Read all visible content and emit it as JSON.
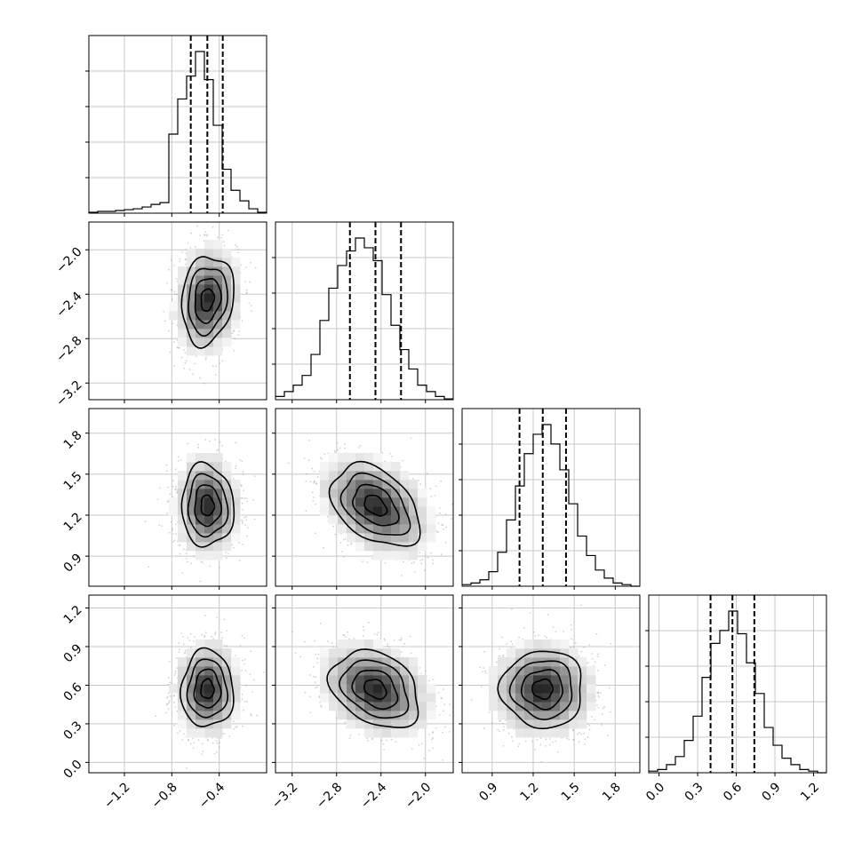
{
  "chart_data": {
    "type": "corner",
    "title": "",
    "grid": true,
    "parameters": [
      {
        "index": 0,
        "center": -0.5,
        "std": 0.11,
        "quantiles": [
          -0.64,
          -0.5,
          -0.37
        ],
        "range": [
          -1.5,
          0.0
        ],
        "ticks": [
          -1.2,
          -0.8,
          -0.4
        ],
        "tick_labels": [
          "−1.2",
          "−0.8",
          "−0.4"
        ]
      },
      {
        "index": 1,
        "center": -2.45,
        "std": 0.2,
        "quantiles": [
          -2.68,
          -2.45,
          -2.22
        ],
        "range": [
          -3.35,
          -1.75
        ],
        "ticks": [
          -3.2,
          -2.8,
          -2.4,
          -2.0
        ],
        "tick_labels": [
          "−3.2",
          "−2.8",
          "−2.4",
          "−2.0"
        ]
      },
      {
        "index": 2,
        "center": 1.27,
        "std": 0.15,
        "quantiles": [
          1.1,
          1.27,
          1.44
        ],
        "range": [
          0.68,
          1.98
        ],
        "ticks": [
          0.9,
          1.2,
          1.5,
          1.8
        ],
        "tick_labels": [
          "0.9",
          "1.2",
          "1.5",
          "1.8"
        ]
      },
      {
        "index": 3,
        "center": 0.57,
        "std": 0.15,
        "quantiles": [
          0.4,
          0.57,
          0.74
        ],
        "range": [
          -0.08,
          1.3
        ],
        "ticks": [
          0.0,
          0.3,
          0.6,
          0.9,
          1.2
        ],
        "tick_labels": [
          "0.0",
          "0.3",
          "0.6",
          "0.9",
          "1.2"
        ]
      }
    ],
    "correlations": [
      {
        "row": 1,
        "col": 0,
        "rho": 0.15
      },
      {
        "row": 2,
        "col": 0,
        "rho": -0.05
      },
      {
        "row": 2,
        "col": 1,
        "rho": -0.4
      },
      {
        "row": 3,
        "col": 0,
        "rho": 0.0
      },
      {
        "row": 3,
        "col": 1,
        "rho": -0.3
      },
      {
        "row": 3,
        "col": 2,
        "rho": 0.0
      }
    ],
    "histograms": [
      {
        "index": 0,
        "bins": 20,
        "counts": [
          0.5,
          1,
          1,
          1.5,
          2,
          2.5,
          3.5,
          5,
          6,
          45,
          65,
          78,
          92,
          76,
          50,
          25,
          13,
          7,
          2.5,
          0.5
        ]
      },
      {
        "index": 1,
        "bins": 20,
        "counts": [
          2,
          5,
          9,
          15,
          28,
          49,
          69,
          83,
          92,
          100,
          94,
          86,
          65,
          46,
          31,
          19,
          9,
          5,
          2,
          0.5
        ]
      },
      {
        "index": 2,
        "bins": 20,
        "counts": [
          1,
          2,
          4,
          9,
          21,
          41,
          62,
          82,
          94,
          100,
          88,
          72,
          51,
          31,
          19,
          10,
          5,
          2,
          1,
          0
        ]
      },
      {
        "index": 3,
        "bins": 20,
        "counts": [
          1,
          2,
          5,
          10,
          20,
          35,
          59,
          80,
          88,
          100,
          86,
          68,
          49,
          28,
          17,
          9,
          5,
          2,
          1,
          0
        ]
      }
    ]
  }
}
